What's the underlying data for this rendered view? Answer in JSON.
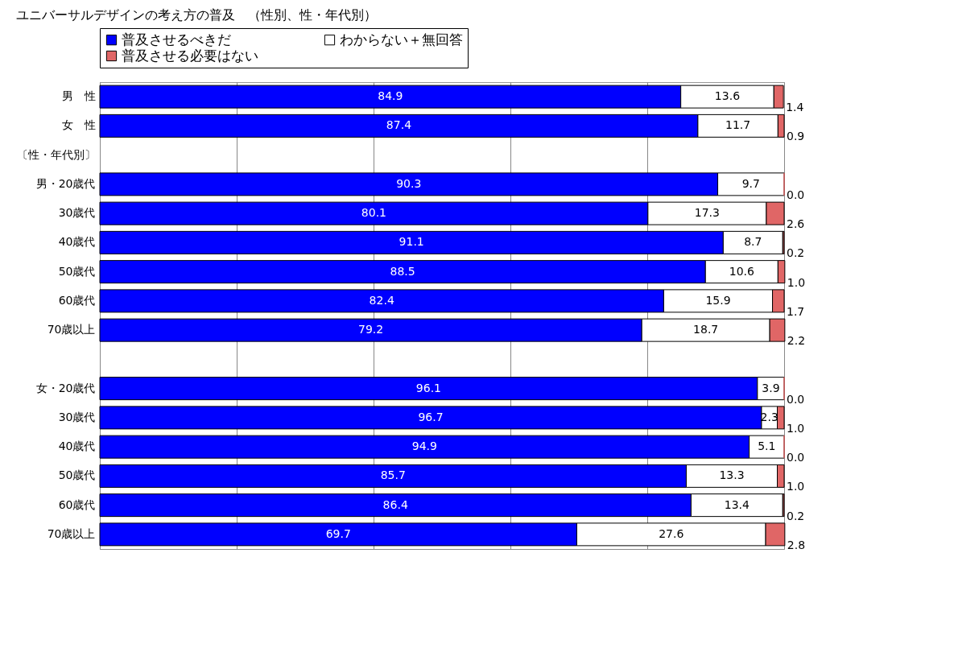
{
  "chart_data": {
    "type": "bar",
    "orientation": "horizontal",
    "stacked": true,
    "title": "ユニバーサルデザインの考え方の普及　（性別、性・年代別）",
    "categories": [
      "男　性",
      "女　性",
      "〔性・年代別〕",
      "男・20歳代",
      "30歳代",
      "40歳代",
      "50歳代",
      "60歳代",
      "70歳以上",
      null,
      "女・20歳代",
      "30歳代",
      "40歳代",
      "50歳代",
      "60歳代",
      "70歳以上"
    ],
    "series": [
      {
        "name": "普及させるべきだ",
        "color": "#0000ff",
        "values": [
          84.9,
          87.4,
          null,
          90.3,
          80.1,
          91.1,
          88.5,
          82.4,
          79.2,
          null,
          96.1,
          96.7,
          94.9,
          85.7,
          86.4,
          69.7
        ],
        "value_labels": [
          "84.9",
          "87.4",
          null,
          "90.3",
          "80.1",
          "91.1",
          "88.5",
          "82.4",
          "79.2",
          null,
          "96.1",
          "96.7",
          "94.9",
          "85.7",
          "86.4",
          "69.7"
        ]
      },
      {
        "name": "わからない＋無回答",
        "color": "#ffffff",
        "values": [
          13.6,
          11.7,
          null,
          9.7,
          17.3,
          8.7,
          10.6,
          15.9,
          18.7,
          null,
          3.9,
          2.3,
          5.1,
          13.3,
          13.4,
          27.6
        ],
        "value_labels": [
          "13.6",
          "11.7",
          null,
          "9.7",
          "17.3",
          "8.7",
          "10.6",
          "15.9",
          "18.7",
          null,
          "3.9",
          "2.3",
          "5.1",
          "13.3",
          "13.4",
          "27.6"
        ]
      },
      {
        "name": "普及させる必要はない",
        "color": "#e06666",
        "values": [
          1.4,
          0.9,
          null,
          0.0,
          2.6,
          0.2,
          1.0,
          1.7,
          2.2,
          null,
          0.0,
          1.0,
          0.0,
          1.0,
          0.2,
          2.8
        ],
        "value_labels": [
          "1.4",
          "0.9",
          null,
          "0.0",
          "2.6",
          "0.2",
          "1.0",
          "1.7",
          "2.2",
          null,
          "0.0",
          "1.0",
          "0.0",
          "1.0",
          "0.2",
          "2.8"
        ]
      }
    ],
    "xlim": [
      0,
      100
    ],
    "xticks": [
      {
        "value": 0,
        "label": null
      },
      {
        "value": 20,
        "label": null
      },
      {
        "value": 40,
        "label": null
      },
      {
        "value": 60,
        "label": null
      },
      {
        "value": 80,
        "label": null
      },
      {
        "value": 100,
        "label": null
      }
    ],
    "tick_labels": "y",
    "grid": "x",
    "legend": "top"
  }
}
